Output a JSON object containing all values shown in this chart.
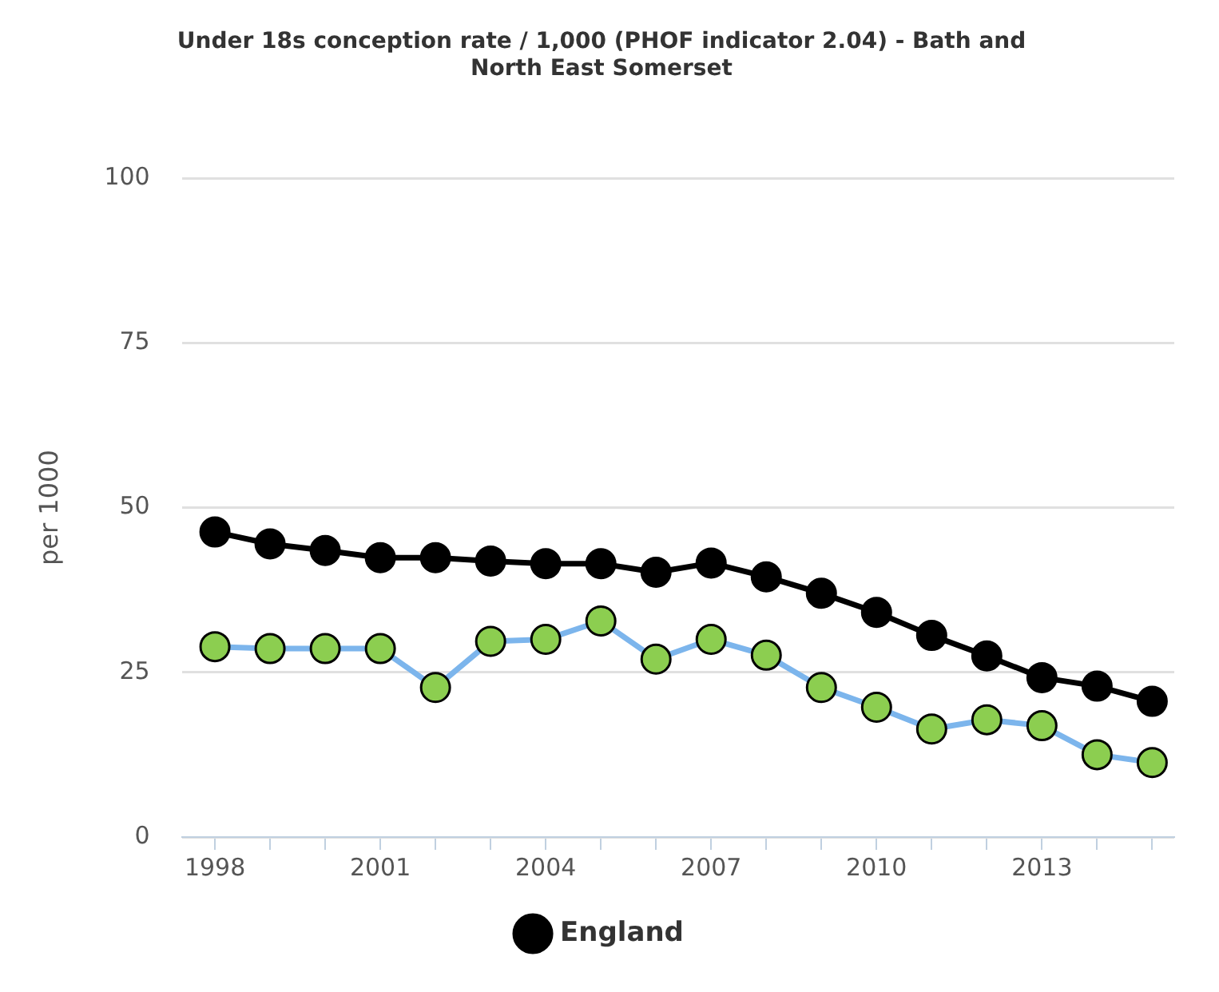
{
  "chart_data": {
    "type": "line",
    "title": "Under 18s conception rate / 1,000 (PHOF indicator 2.04) - Bath and North East Somerset",
    "ylabel": "per 1000",
    "x": [
      1998,
      1999,
      2000,
      2001,
      2002,
      2003,
      2004,
      2005,
      2006,
      2007,
      2008,
      2009,
      2010,
      2011,
      2012,
      2013,
      2014,
      2015
    ],
    "series": [
      {
        "name": "England",
        "color": "#000000",
        "values": [
          46.3,
          44.5,
          43.5,
          42.4,
          42.4,
          41.9,
          41.5,
          41.5,
          40.2,
          41.6,
          39.5,
          37.0,
          34.1,
          30.6,
          27.5,
          24.2,
          22.9,
          20.6
        ]
      },
      {
        "color": "#7cb5ec",
        "colors": [
          "#8cce50",
          "#8cce50",
          "#8cce50",
          "#8cce50",
          "#8cce50",
          "#8cce50",
          "#8cce50",
          "#8cce50",
          "#8cce50",
          "#8cce50",
          "#8cce50",
          "#8cce50",
          "#8cce50",
          "#8cce50",
          "#8cce50",
          "#8cce50",
          "#8cce50",
          "#8cce50"
        ],
        "values": [
          28.9,
          28.6,
          28.6,
          28.6,
          22.7,
          29.7,
          30.0,
          32.8,
          27.0,
          30.0,
          27.6,
          22.7,
          19.7,
          16.4,
          17.8,
          16.9,
          12.5,
          11.3
        ]
      }
    ],
    "xlim": [
      1997.4,
      2015.4
    ],
    "xticks": [
      1998,
      {
        "value": 1999,
        "label": null
      },
      {
        "value": 2000,
        "label": null
      },
      2001,
      {
        "value": 2002,
        "label": null
      },
      {
        "value": 2003,
        "label": null
      },
      2004,
      {
        "value": 2005,
        "label": null
      },
      {
        "value": 2006,
        "label": null
      },
      2007,
      {
        "value": 2008,
        "label": null
      },
      {
        "value": 2009,
        "label": null
      },
      2010,
      {
        "value": 2011,
        "label": null
      },
      {
        "value": 2012,
        "label": null
      },
      2013,
      {
        "value": 2014,
        "label": null
      },
      {
        "value": 2015,
        "label": null
      }
    ],
    "ylim": [
      0,
      100
    ],
    "yticks": [
      0,
      25,
      50,
      75,
      100
    ],
    "grid": "y",
    "legend": "bottom",
    "marker": "circle",
    "line_style": "solid"
  }
}
